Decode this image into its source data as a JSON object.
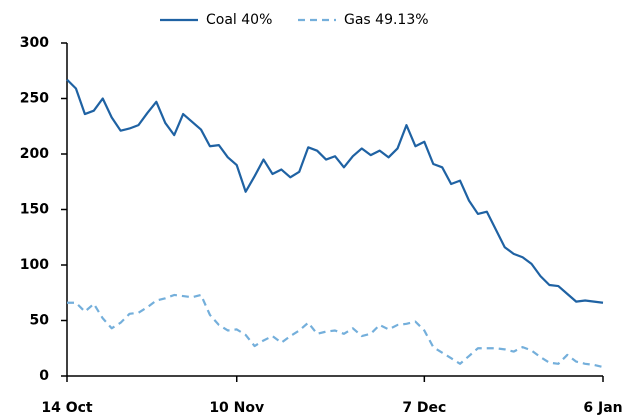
{
  "chart_data": {
    "type": "line",
    "categories": [
      "14 Oct",
      null,
      null,
      null,
      null,
      null,
      null,
      null,
      null,
      null,
      null,
      null,
      null,
      null,
      null,
      null,
      null,
      null,
      null,
      "10 Nov",
      null,
      null,
      null,
      null,
      null,
      null,
      null,
      null,
      null,
      null,
      null,
      null,
      null,
      null,
      null,
      null,
      null,
      null,
      null,
      null,
      "7 Dec",
      null,
      null,
      null,
      null,
      null,
      null,
      null,
      null,
      null,
      null,
      null,
      null,
      null,
      null,
      null,
      null,
      null,
      null,
      null,
      "6 Jan"
    ],
    "series": [
      {
        "name": "Coal 40%",
        "color": "#1f62a3",
        "dashed": false,
        "values": [
          267,
          259,
          236,
          239,
          250,
          233,
          221,
          223,
          226,
          237,
          247,
          228,
          217,
          236,
          229,
          222,
          207,
          208,
          197,
          190,
          166,
          180,
          195,
          182,
          186,
          179,
          184,
          206,
          203,
          195,
          198,
          188,
          198,
          205,
          199,
          203,
          197,
          205,
          226,
          207,
          211,
          191,
          188,
          173,
          176,
          158,
          146,
          148,
          132,
          116,
          110,
          107,
          101,
          90,
          82,
          81,
          74,
          67,
          68,
          67,
          66
        ]
      },
      {
        "name": "Gas 49.13%",
        "color": "#74afdb",
        "dashed": true,
        "values": [
          66,
          66,
          58,
          65,
          52,
          43,
          48,
          56,
          57,
          62,
          68,
          70,
          73,
          72,
          71,
          73,
          55,
          46,
          41,
          42,
          37,
          27,
          32,
          36,
          30,
          36,
          41,
          48,
          38,
          40,
          41,
          38,
          43,
          36,
          38,
          46,
          42,
          46,
          47,
          49,
          41,
          26,
          21,
          16,
          11,
          18,
          25,
          25,
          25,
          24,
          22,
          26,
          23,
          17,
          12,
          11,
          19,
          13,
          11,
          10,
          8
        ]
      }
    ],
    "ylim": [
      0,
      300
    ],
    "yticks": [
      0,
      50,
      100,
      150,
      200,
      250,
      300
    ],
    "legend": "top"
  }
}
